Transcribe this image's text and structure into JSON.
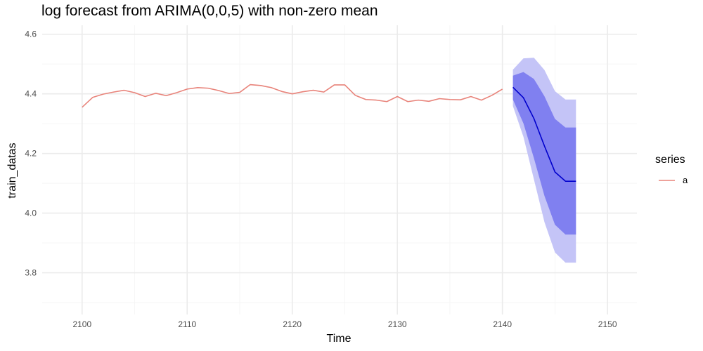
{
  "chart_data": {
    "type": "line",
    "title": "log forecast from ARIMA(0,0,5) with non-zero mean",
    "xlabel": "Time",
    "ylabel": "train_datas",
    "xlim": [
      2096.2,
      2152.8
    ],
    "ylim": [
      3.66,
      4.63
    ],
    "x_ticks": [
      2100,
      2110,
      2120,
      2130,
      2140,
      2150
    ],
    "y_ticks": [
      3.8,
      4.0,
      4.2,
      4.4,
      4.6
    ],
    "grid": true,
    "legend": {
      "title": "series",
      "position": "right",
      "entries": [
        "a"
      ]
    },
    "colors": {
      "series_a": "#e8837a",
      "forecast_line": "#0000cc",
      "interval_80": "#8080f0",
      "interval_95": "#c4c4f7",
      "grid_major": "#ebebeb",
      "grid_minor": "#f5f5f5"
    },
    "series": [
      {
        "name": "a",
        "x": [
          2100,
          2101,
          2102,
          2103,
          2104,
          2105,
          2106,
          2107,
          2108,
          2109,
          2110,
          2111,
          2112,
          2113,
          2114,
          2115,
          2116,
          2117,
          2118,
          2119,
          2120,
          2121,
          2122,
          2123,
          2124,
          2125,
          2126,
          2127,
          2128,
          2129,
          2130,
          2131,
          2132,
          2133,
          2134,
          2135,
          2136,
          2137,
          2138,
          2139,
          2140
        ],
        "values": [
          4.355,
          4.388,
          4.399,
          4.406,
          4.412,
          4.404,
          4.391,
          4.402,
          4.394,
          4.404,
          4.416,
          4.421,
          4.419,
          4.411,
          4.401,
          4.405,
          4.431,
          4.428,
          4.421,
          4.408,
          4.4,
          4.407,
          4.412,
          4.406,
          4.43,
          4.43,
          4.395,
          4.381,
          4.379,
          4.374,
          4.391,
          4.374,
          4.379,
          4.375,
          4.384,
          4.381,
          4.38,
          4.391,
          4.379,
          4.395,
          4.416
        ]
      }
    ],
    "forecast": {
      "x": [
        2141,
        2142,
        2143,
        2144,
        2145,
        2146,
        2147
      ],
      "mean": [
        4.422,
        4.387,
        4.317,
        4.225,
        4.138,
        4.107,
        4.107
      ],
      "lo80": [
        4.381,
        4.301,
        4.184,
        4.058,
        3.961,
        3.928,
        3.928
      ],
      "hi80": [
        4.461,
        4.473,
        4.45,
        4.392,
        4.316,
        4.287,
        4.287
      ],
      "lo95": [
        4.359,
        4.256,
        4.113,
        3.97,
        3.868,
        3.834,
        3.834
      ],
      "hi95": [
        4.481,
        4.519,
        4.521,
        4.48,
        4.409,
        4.381,
        4.381
      ]
    }
  }
}
